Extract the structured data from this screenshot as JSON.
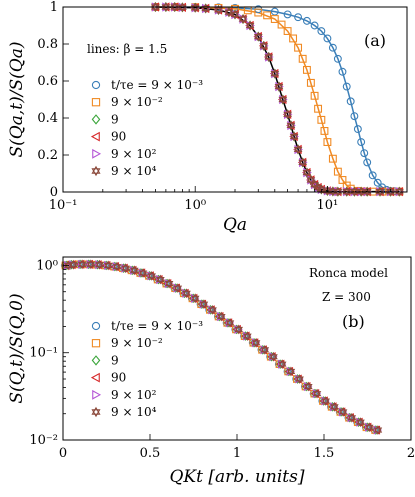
{
  "chart_data": [
    {
      "type": "scatter",
      "panel_label": "(a)",
      "annotation": "lines: β = 1.5",
      "xlabel": "Qa",
      "ylabel": "S(Qa,t)/S(Qa)",
      "xscale": "log",
      "xlim": [
        0.1,
        40
      ],
      "ylim": [
        0,
        1
      ],
      "xticks": [
        {
          "v": 0.1,
          "label": "10⁻¹"
        },
        {
          "v": 1,
          "label": "10⁰"
        },
        {
          "v": 10,
          "label": "10¹"
        }
      ],
      "yticks": [
        {
          "v": 0,
          "label": "0"
        },
        {
          "v": 0.2,
          "label": "0.2"
        },
        {
          "v": 0.4,
          "label": "0.4"
        },
        {
          "v": 0.6,
          "label": "0.6"
        },
        {
          "v": 0.8,
          "label": "0.8"
        },
        {
          "v": 1,
          "label": "1"
        }
      ],
      "legend_placement": "center-left",
      "series": [
        {
          "name": "t/τe = 9 × 10⁻³",
          "marker": "circle",
          "color": "#3b7fb8",
          "x": [
            0.5,
            0.7,
            1,
            1.5,
            2,
            3,
            4,
            5,
            6,
            7,
            8,
            9,
            10,
            11,
            12,
            13,
            14,
            15,
            16,
            17,
            18,
            19,
            20,
            22,
            24,
            26,
            28,
            30,
            32,
            35
          ],
          "y": [
            1,
            1,
            1,
            0.998,
            0.995,
            0.988,
            0.975,
            0.96,
            0.945,
            0.925,
            0.9,
            0.87,
            0.83,
            0.78,
            0.72,
            0.65,
            0.57,
            0.49,
            0.41,
            0.34,
            0.27,
            0.21,
            0.16,
            0.09,
            0.05,
            0.025,
            0.012,
            0.006,
            0.004,
            0.003
          ]
        },
        {
          "name": "9 × 10⁻²",
          "marker": "square",
          "color": "#f08a24",
          "x": [
            0.5,
            0.7,
            1,
            1.5,
            2,
            2.5,
            3,
            3.5,
            4,
            4.5,
            5,
            5.5,
            6,
            6.5,
            7,
            7.5,
            8,
            8.5,
            9,
            9.5,
            10,
            11,
            12,
            13,
            14,
            15,
            17,
            19,
            22,
            26,
            30,
            35
          ],
          "y": [
            1,
            1,
            0.999,
            0.995,
            0.99,
            0.982,
            0.97,
            0.955,
            0.935,
            0.905,
            0.87,
            0.83,
            0.78,
            0.72,
            0.66,
            0.59,
            0.52,
            0.45,
            0.39,
            0.33,
            0.27,
            0.18,
            0.11,
            0.065,
            0.035,
            0.018,
            0.006,
            0.003,
            0.002,
            0.002,
            0.002,
            0.002
          ]
        },
        {
          "name": "9",
          "marker": "diamond",
          "color": "#3aa53a",
          "x": [
            0.5,
            0.6,
            0.7,
            0.8,
            1,
            1.2,
            1.5,
            1.8,
            2,
            2.3,
            2.6,
            3,
            3.3,
            3.6,
            4,
            4.3,
            4.6,
            5,
            5.3,
            5.6,
            6,
            6.5,
            7,
            7.5,
            8,
            8.5,
            9,
            10,
            11,
            12,
            14,
            16,
            18,
            20,
            25,
            30,
            35
          ],
          "y": [
            1,
            1,
            1,
            0.998,
            0.996,
            0.992,
            0.984,
            0.972,
            0.96,
            0.935,
            0.9,
            0.84,
            0.79,
            0.73,
            0.64,
            0.57,
            0.5,
            0.42,
            0.36,
            0.3,
            0.23,
            0.16,
            0.105,
            0.065,
            0.04,
            0.024,
            0.014,
            0.006,
            0.003,
            0.002,
            0.002,
            0.002,
            0.002,
            0.002,
            0.002,
            0.002,
            0.002
          ]
        },
        {
          "name": "90",
          "marker": "tri-left",
          "color": "#d62728",
          "x": [
            0.5,
            0.6,
            0.7,
            0.8,
            1,
            1.2,
            1.5,
            1.8,
            2,
            2.3,
            2.6,
            3,
            3.3,
            3.6,
            4,
            4.3,
            4.6,
            5,
            5.3,
            5.6,
            6,
            6.5,
            7,
            7.5,
            8,
            8.5,
            9,
            10,
            11,
            12,
            14,
            16,
            18,
            20,
            25,
            30,
            35
          ],
          "y": [
            1,
            1,
            1,
            0.998,
            0.996,
            0.992,
            0.984,
            0.972,
            0.96,
            0.935,
            0.9,
            0.84,
            0.79,
            0.73,
            0.64,
            0.57,
            0.5,
            0.42,
            0.36,
            0.3,
            0.23,
            0.16,
            0.105,
            0.065,
            0.04,
            0.024,
            0.014,
            0.006,
            0.003,
            0.002,
            0.002,
            0.002,
            0.002,
            0.002,
            0.002,
            0.002,
            0.002
          ]
        },
        {
          "name": "9 × 10²",
          "marker": "tri-right",
          "color": "#b455d6",
          "x": [
            0.5,
            0.6,
            0.7,
            0.8,
            1,
            1.2,
            1.5,
            1.8,
            2,
            2.3,
            2.6,
            3,
            3.3,
            3.6,
            4,
            4.3,
            4.6,
            5,
            5.3,
            5.6,
            6,
            6.5,
            7,
            7.5,
            8,
            8.5,
            9,
            10,
            11,
            12,
            14,
            16,
            18,
            20,
            25,
            30,
            35
          ],
          "y": [
            1,
            1,
            1,
            0.998,
            0.996,
            0.992,
            0.984,
            0.972,
            0.96,
            0.935,
            0.9,
            0.84,
            0.79,
            0.73,
            0.64,
            0.57,
            0.5,
            0.42,
            0.36,
            0.3,
            0.23,
            0.16,
            0.105,
            0.065,
            0.04,
            0.024,
            0.014,
            0.006,
            0.003,
            0.002,
            0.002,
            0.002,
            0.002,
            0.002,
            0.002,
            0.002,
            0.002
          ]
        },
        {
          "name": "9 × 10⁴",
          "marker": "hexagram",
          "color": "#8c4a3c",
          "x": [
            0.5,
            0.6,
            0.7,
            0.8,
            1,
            1.2,
            1.5,
            1.8,
            2,
            2.3,
            2.6,
            3,
            3.3,
            3.6,
            4,
            4.3,
            4.6,
            5,
            5.3,
            5.6,
            6,
            6.5,
            7,
            7.5,
            8,
            8.5,
            9,
            10,
            11,
            12,
            14,
            16,
            18,
            20,
            25,
            30,
            35
          ],
          "y": [
            1,
            1,
            1,
            0.998,
            0.996,
            0.992,
            0.984,
            0.972,
            0.96,
            0.935,
            0.9,
            0.84,
            0.79,
            0.73,
            0.64,
            0.57,
            0.5,
            0.42,
            0.36,
            0.3,
            0.23,
            0.16,
            0.105,
            0.065,
            0.04,
            0.024,
            0.014,
            0.006,
            0.003,
            0.002,
            0.002,
            0.002,
            0.002,
            0.002,
            0.002,
            0.002,
            0.002
          ]
        }
      ],
      "lines": [
        {
          "color": "#3b7fb8",
          "x": [
            0.5,
            1,
            2,
            3,
            4,
            5,
            6,
            7,
            8,
            9,
            10,
            11,
            12,
            13,
            14,
            15,
            16,
            17,
            18,
            19,
            20,
            22,
            24,
            26,
            28,
            30,
            35
          ],
          "y": [
            1,
            1,
            0.995,
            0.988,
            0.975,
            0.96,
            0.945,
            0.925,
            0.9,
            0.87,
            0.83,
            0.78,
            0.72,
            0.65,
            0.57,
            0.49,
            0.41,
            0.34,
            0.27,
            0.21,
            0.16,
            0.09,
            0.05,
            0.025,
            0.012,
            0.006,
            0.003
          ]
        },
        {
          "color": "#f08a24",
          "x": [
            0.5,
            1,
            2,
            3,
            4,
            5,
            6,
            7,
            8,
            9,
            10,
            11,
            12,
            13,
            14,
            15,
            17,
            20,
            35
          ],
          "y": [
            1,
            0.999,
            0.99,
            0.97,
            0.935,
            0.87,
            0.78,
            0.66,
            0.52,
            0.39,
            0.27,
            0.18,
            0.11,
            0.065,
            0.035,
            0.018,
            0.006,
            0.002,
            0.002
          ]
        },
        {
          "color": "#000000",
          "x": [
            0.5,
            1,
            1.5,
            2,
            2.6,
            3,
            3.6,
            4,
            4.6,
            5,
            5.6,
            6,
            6.5,
            7,
            7.5,
            8,
            9,
            10,
            12,
            16,
            35
          ],
          "y": [
            1,
            0.996,
            0.984,
            0.96,
            0.9,
            0.84,
            0.73,
            0.64,
            0.5,
            0.42,
            0.3,
            0.23,
            0.16,
            0.105,
            0.065,
            0.04,
            0.014,
            0.006,
            0.002,
            0.002,
            0.002
          ]
        }
      ]
    },
    {
      "type": "scatter",
      "panel_label": "(b)",
      "annotation_lines": [
        "Ronca model",
        "Z = 300"
      ],
      "xlabel": "QKt [arb. units]",
      "ylabel": "S(Q,t)/S(Q,0)",
      "yscale": "log",
      "xlim": [
        0,
        2
      ],
      "ylim": [
        0.01,
        1.25
      ],
      "xticks": [
        {
          "v": 0,
          "label": "0"
        },
        {
          "v": 0.5,
          "label": "0.5"
        },
        {
          "v": 1,
          "label": "1"
        },
        {
          "v": 1.5,
          "label": "1.5"
        },
        {
          "v": 2,
          "label": "2"
        }
      ],
      "yticks": [
        {
          "v": 0.01,
          "label": "10⁻²"
        },
        {
          "v": 0.1,
          "label": "10⁻¹"
        },
        {
          "v": 1,
          "label": "10⁰"
        }
      ],
      "legend_placement": "lower-left",
      "series": [
        {
          "name": "t/τe = 9 × 10⁻³",
          "marker": "circle",
          "color": "#3b7fb8"
        },
        {
          "name": "9 × 10⁻²",
          "marker": "square",
          "color": "#f08a24"
        },
        {
          "name": "9",
          "marker": "diamond",
          "color": "#3aa53a"
        },
        {
          "name": "90",
          "marker": "tri-left",
          "color": "#d62728"
        },
        {
          "name": "9 × 10²",
          "marker": "tri-right",
          "color": "#b455d6"
        },
        {
          "name": "9 × 10⁴",
          "marker": "hexagram",
          "color": "#8c4a3c"
        }
      ],
      "collapse_curve": {
        "x": [
          0.02,
          0.05,
          0.1,
          0.15,
          0.2,
          0.25,
          0.3,
          0.35,
          0.4,
          0.45,
          0.5,
          0.55,
          0.6,
          0.65,
          0.7,
          0.75,
          0.8,
          0.85,
          0.9,
          0.95,
          1.0,
          1.05,
          1.1,
          1.15,
          1.2,
          1.25,
          1.3,
          1.35,
          1.4,
          1.45,
          1.5,
          1.55,
          1.6,
          1.65,
          1.7,
          1.75,
          1.8
        ],
        "y": [
          1.0,
          1.02,
          1.03,
          1.03,
          1.02,
          1.0,
          0.97,
          0.93,
          0.88,
          0.82,
          0.76,
          0.69,
          0.62,
          0.55,
          0.48,
          0.42,
          0.36,
          0.31,
          0.26,
          0.22,
          0.185,
          0.155,
          0.13,
          0.108,
          0.09,
          0.074,
          0.061,
          0.05,
          0.041,
          0.034,
          0.028,
          0.024,
          0.021,
          0.018,
          0.016,
          0.014,
          0.013
        ]
      }
    }
  ]
}
